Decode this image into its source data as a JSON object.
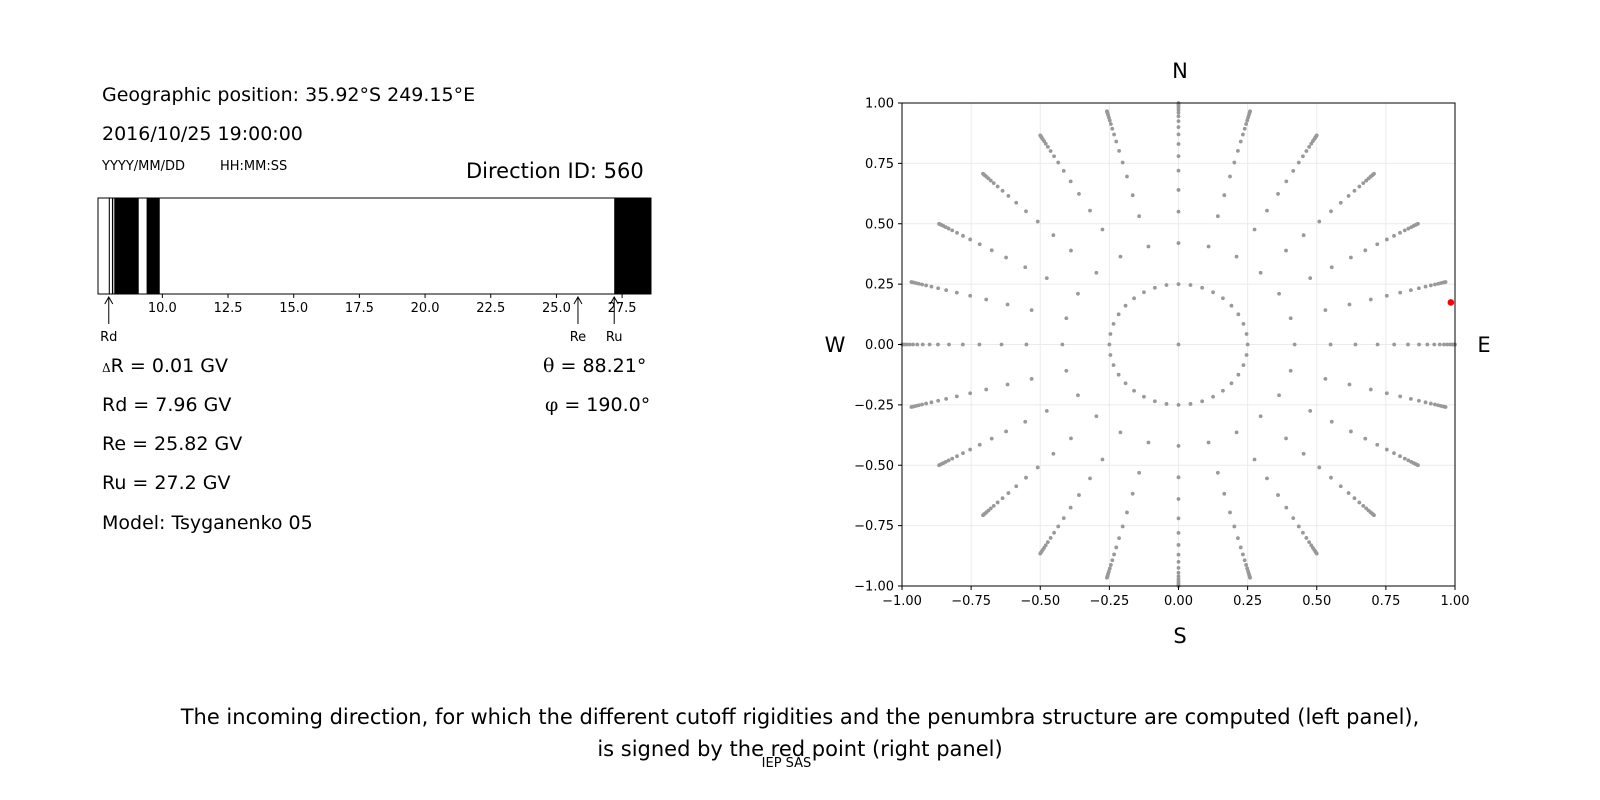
{
  "left_panel": {
    "geo_position": "Geographic position: 35.92°S 249.15°E",
    "datetime": "2016/10/25 19:00:00",
    "date_format": "YYYY/MM/DD",
    "time_format": "HH:MM:SS",
    "direction_id": "Direction ID: 560",
    "delta_r_symbol": "Δ",
    "delta_r_text": "R = 0.01 GV",
    "rd_text": "Rd = 7.96 GV",
    "re_text": "Re = 25.82 GV",
    "ru_text": "Ru = 27.2 GV",
    "model_text": "Model: Tsyganenko 05",
    "theta_symbol": "θ",
    "theta_text": " = 88.21°",
    "phi_symbol": "φ",
    "phi_text": " = 190.0°",
    "marker_labels": {
      "rd": "Rd",
      "re": "Re",
      "ru": "Ru"
    }
  },
  "right_panel": {
    "compass": {
      "north": "N",
      "south": "S",
      "west": "W",
      "east": "E"
    }
  },
  "caption": {
    "line1": "The incoming direction, for which the different cutoff rigidities and the penumbra structure are computed (left panel),",
    "line2": "is signed by the red point (right panel)"
  },
  "footer": "IEP SAS",
  "chart_data": [
    {
      "type": "bar",
      "name": "penumbra",
      "x_range": [
        4.0,
        29.0
      ],
      "xlim": [
        7.55,
        28.6
      ],
      "xticks": [
        10.0,
        12.5,
        15.0,
        17.5,
        20.0,
        22.5,
        25.0,
        27.5
      ],
      "xtick_labels": [
        "10.0",
        "12.5",
        "15.0",
        "17.5",
        "20.0",
        "22.5",
        "25.0",
        "27.5"
      ],
      "forbidden_bands": [
        [
          7.96,
          8.0
        ],
        [
          8.08,
          8.13
        ],
        [
          8.17,
          9.1
        ],
        [
          9.4,
          9.9
        ],
        [
          27.2,
          28.6
        ]
      ],
      "markers": {
        "Rd": 7.96,
        "Re": 25.82,
        "Ru": 27.2
      },
      "colors": {
        "forbidden": "#000000",
        "allowed": "#ffffff"
      }
    },
    {
      "type": "scatter",
      "name": "directions",
      "xlim": [
        -1.0,
        1.0
      ],
      "ylim": [
        -1.0,
        1.0
      ],
      "xticks": [
        -1.0,
        -0.75,
        -0.5,
        -0.25,
        0.0,
        0.25,
        0.5,
        0.75,
        1.0
      ],
      "xtick_labels": [
        "−1.00",
        "−0.75",
        "−0.50",
        "−0.25",
        "0.00",
        "0.25",
        "0.50",
        "0.75",
        "1.00"
      ],
      "yticks": [
        1.0,
        0.75,
        0.5,
        0.25,
        0.0,
        -0.25,
        -0.5,
        -0.75,
        -1.0
      ],
      "ytick_labels": [
        "1.00",
        "0.75",
        "0.50",
        "0.25",
        "0.00",
        "−0.25",
        "−0.50",
        "−0.75",
        "−1.00"
      ],
      "grid": true,
      "ring_radii": [
        0.25,
        0.42,
        0.55,
        0.64,
        0.72,
        0.78,
        0.83,
        0.87,
        0.9,
        0.925,
        0.945,
        0.96,
        0.972,
        0.982,
        0.99,
        0.996,
        1.0
      ],
      "inner_ring_points": 36,
      "outer_rays": 24,
      "point_color": "#999999",
      "selected_point": {
        "x": 0.985,
        "y": 0.174,
        "color": "#ff0000"
      }
    }
  ]
}
